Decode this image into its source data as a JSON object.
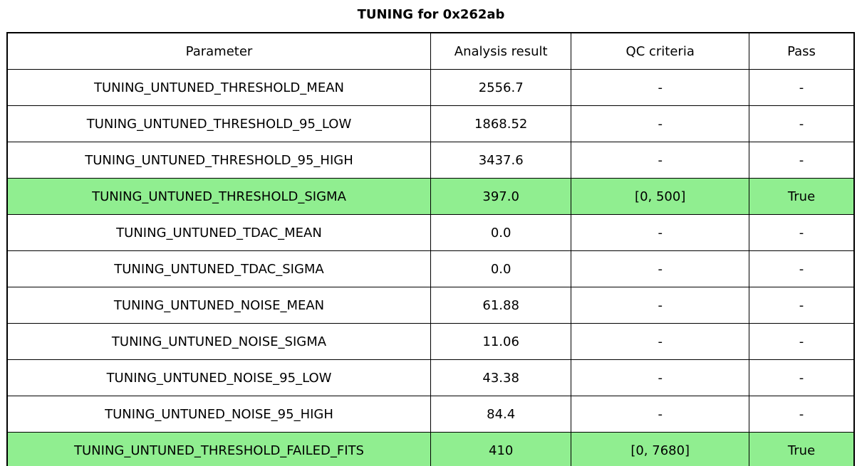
{
  "page": {
    "title": "TUNING for 0x262ab"
  },
  "chart_data": {
    "type": "table",
    "title": "TUNING for 0x262ab",
    "columns": [
      "Parameter",
      "Analysis result",
      "QC criteria",
      "Pass"
    ],
    "rows": [
      [
        "TUNING_UNTUNED_THRESHOLD_MEAN",
        "2556.7",
        "-",
        "-"
      ],
      [
        "TUNING_UNTUNED_THRESHOLD_95_LOW",
        "1868.52",
        "-",
        "-"
      ],
      [
        "TUNING_UNTUNED_THRESHOLD_95_HIGH",
        "3437.6",
        "-",
        "-"
      ],
      [
        "TUNING_UNTUNED_THRESHOLD_SIGMA",
        "397.0",
        "[0, 500]",
        "True"
      ],
      [
        "TUNING_UNTUNED_TDAC_MEAN",
        "0.0",
        "-",
        "-"
      ],
      [
        "TUNING_UNTUNED_TDAC_SIGMA",
        "0.0",
        "-",
        "-"
      ],
      [
        "TUNING_UNTUNED_NOISE_MEAN",
        "61.88",
        "-",
        "-"
      ],
      [
        "TUNING_UNTUNED_NOISE_SIGMA",
        "11.06",
        "-",
        "-"
      ],
      [
        "TUNING_UNTUNED_NOISE_95_LOW",
        "43.38",
        "-",
        "-"
      ],
      [
        "TUNING_UNTUNED_NOISE_95_HIGH",
        "84.4",
        "-",
        "-"
      ],
      [
        "TUNING_UNTUNED_THRESHOLD_FAILED_FITS",
        "410",
        "[0, 7680]",
        "True"
      ]
    ],
    "highlighted_rows": [
      3,
      10
    ],
    "colors": {
      "highlight": "#90ee90",
      "border": "#000000",
      "text": "#000000",
      "background": "#ffffff"
    },
    "layout": {
      "column_widths_pct": [
        50,
        16.6,
        21,
        12.4
      ],
      "grid": true,
      "legend": "none"
    }
  }
}
